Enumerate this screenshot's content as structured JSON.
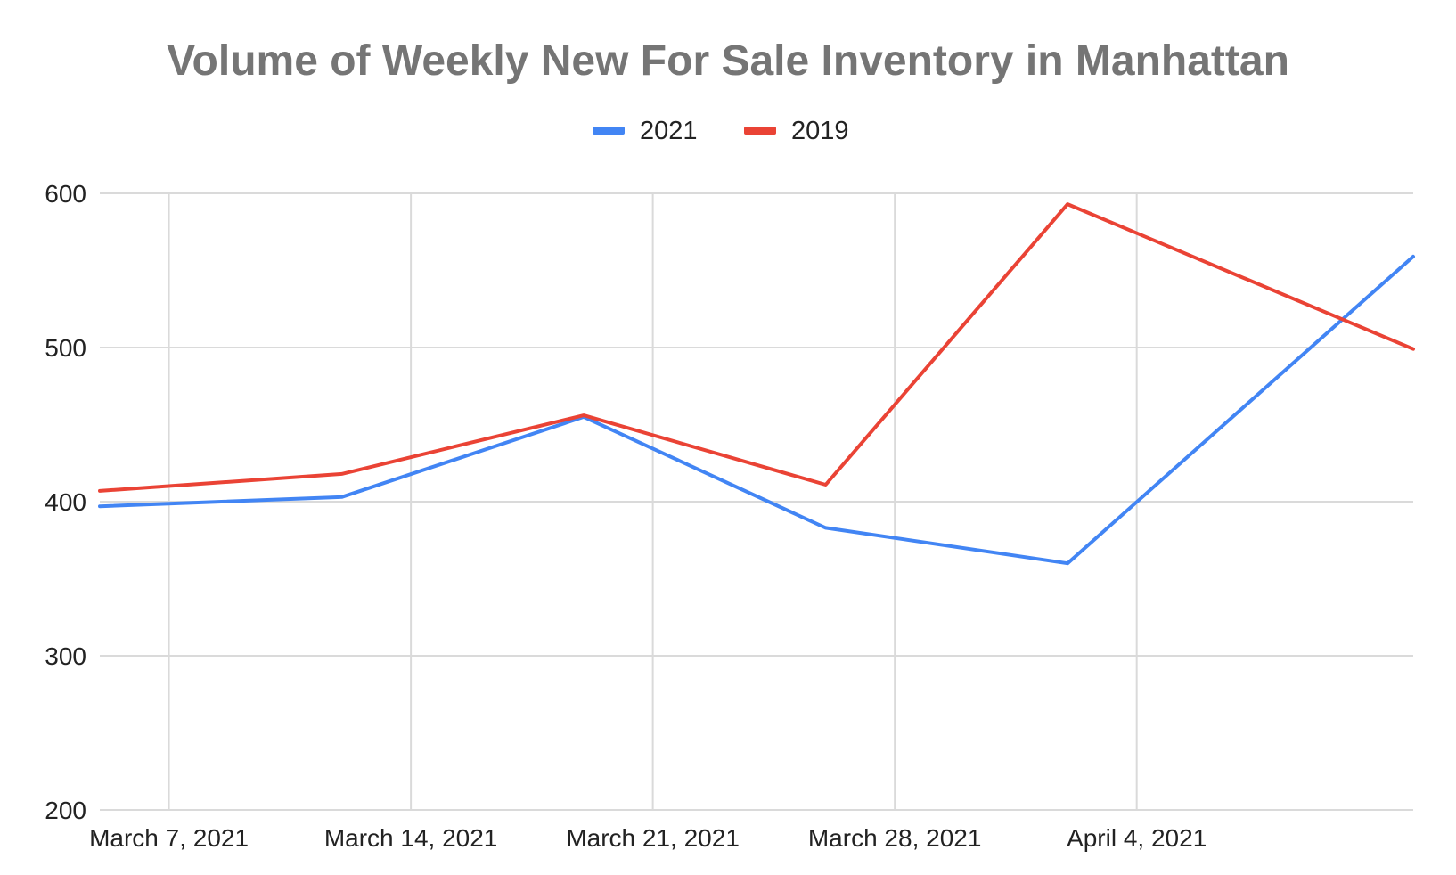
{
  "chart_data": {
    "type": "line",
    "title": "Volume of Weekly New For Sale Inventory in Manhattan",
    "xlabel": "",
    "ylabel": "",
    "x_tick_labels": [
      "March 7, 2021",
      "March 14, 2021",
      "March 21, 2021",
      "March 28, 2021",
      "April 4, 2021"
    ],
    "xlim": [
      "2021-03-05",
      "2021-04-12"
    ],
    "x_ticks": [
      "2021-03-07",
      "2021-03-14",
      "2021-03-21",
      "2021-03-28",
      "2021-04-04"
    ],
    "ylim": [
      200,
      600
    ],
    "y_ticks": [
      200,
      300,
      400,
      500,
      600
    ],
    "grid": true,
    "legend_position": "top-center",
    "series": [
      {
        "name": "2021",
        "color": "#4285f4",
        "points": [
          {
            "x": "2021-03-05",
            "y": 397
          },
          {
            "x": "2021-03-12",
            "y": 403
          },
          {
            "x": "2021-03-19",
            "y": 455
          },
          {
            "x": "2021-03-26",
            "y": 383
          },
          {
            "x": "2021-04-02",
            "y": 360
          },
          {
            "x": "2021-04-12",
            "y": 559
          }
        ]
      },
      {
        "name": "2019",
        "color": "#ea4335",
        "points": [
          {
            "x": "2021-03-05",
            "y": 407
          },
          {
            "x": "2021-03-12",
            "y": 418
          },
          {
            "x": "2021-03-19",
            "y": 456
          },
          {
            "x": "2021-03-26",
            "y": 411
          },
          {
            "x": "2021-04-02",
            "y": 593
          },
          {
            "x": "2021-04-12",
            "y": 499
          }
        ]
      }
    ]
  }
}
